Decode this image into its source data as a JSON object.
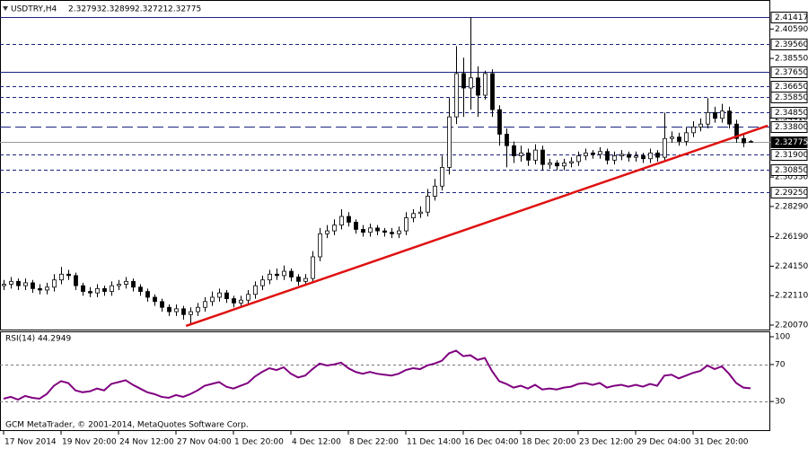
{
  "chart_data": [
    {
      "type": "candlestick",
      "title": "USDTRY,H4",
      "last_quote": [
        2.32793,
        2.32899,
        2.32721,
        2.32775
      ],
      "credit": "GCM MetaTrader, © 2001-2014, MetaQuotes Software Corp.",
      "categories": [
        "17 Nov 2014",
        null,
        null,
        null,
        null,
        null,
        null,
        null,
        "19 Nov 20:00",
        null,
        null,
        null,
        null,
        null,
        null,
        null,
        "24 Nov 12:00",
        null,
        null,
        null,
        null,
        null,
        null,
        null,
        "27 Nov 04:00",
        null,
        null,
        null,
        null,
        null,
        null,
        null,
        "1 Dec 20:00",
        null,
        null,
        null,
        null,
        null,
        null,
        null,
        "4 Dec 12:00",
        null,
        null,
        null,
        null,
        null,
        null,
        null,
        "8 Dec 22:00",
        null,
        null,
        null,
        null,
        null,
        null,
        null,
        "11 Dec 14:00",
        null,
        null,
        null,
        null,
        null,
        null,
        null,
        "16 Dec 04:00",
        null,
        null,
        null,
        null,
        null,
        null,
        null,
        "18 Dec 20:00",
        null,
        null,
        null,
        null,
        null,
        null,
        null,
        "23 Dec 12:00",
        null,
        null,
        null,
        null,
        null,
        null,
        null,
        "29 Dec 04:00",
        null,
        null,
        null,
        null,
        null,
        null,
        null,
        "31 Dec 20:00",
        null,
        null,
        null,
        null,
        null,
        null,
        null,
        null
      ],
      "open": [
        2.228,
        2.229,
        2.231,
        2.228,
        2.23,
        2.226,
        2.225,
        2.227,
        2.232,
        2.236,
        2.235,
        2.228,
        2.224,
        2.223,
        2.226,
        2.224,
        2.228,
        2.229,
        2.231,
        2.227,
        2.224,
        2.22,
        2.217,
        2.213,
        2.21,
        2.212,
        2.208,
        2.21,
        2.213,
        2.217,
        2.22,
        2.223,
        2.219,
        2.216,
        2.218,
        2.222,
        2.228,
        2.232,
        2.236,
        2.235,
        2.238,
        2.234,
        2.231,
        2.233,
        2.248,
        2.264,
        2.266,
        2.27,
        2.276,
        2.272,
        2.267,
        2.265,
        2.268,
        2.266,
        2.265,
        2.264,
        2.266,
        2.275,
        2.278,
        2.279,
        2.29,
        2.297,
        2.31,
        2.345,
        2.375,
        2.365,
        2.372,
        2.36,
        2.375,
        2.35,
        2.333,
        2.325,
        2.318,
        2.32,
        2.315,
        2.322,
        2.312,
        2.313,
        2.311,
        2.313,
        2.314,
        2.318,
        2.32,
        2.319,
        2.321,
        2.315,
        2.318,
        2.319,
        2.317,
        2.318,
        2.316,
        2.32,
        2.317,
        2.33,
        2.331,
        2.328,
        2.334,
        2.338,
        2.34,
        2.348,
        2.344,
        2.349,
        2.34,
        2.33,
        2.32793
      ],
      "high": [
        2.232,
        2.234,
        2.233,
        2.233,
        2.232,
        2.229,
        2.23,
        2.236,
        2.241,
        2.239,
        2.237,
        2.23,
        2.227,
        2.229,
        2.228,
        2.231,
        2.232,
        2.234,
        2.233,
        2.229,
        2.226,
        2.222,
        2.219,
        2.215,
        2.215,
        2.214,
        2.213,
        2.216,
        2.22,
        2.224,
        2.226,
        2.225,
        2.221,
        2.221,
        2.225,
        2.231,
        2.235,
        2.239,
        2.24,
        2.242,
        2.24,
        2.236,
        2.236,
        2.252,
        2.268,
        2.27,
        2.274,
        2.281,
        2.279,
        2.274,
        2.27,
        2.271,
        2.27,
        2.268,
        2.268,
        2.269,
        2.279,
        2.281,
        2.283,
        2.295,
        2.302,
        2.318,
        2.358,
        2.394,
        2.386,
        2.41417,
        2.38,
        2.377,
        2.378,
        2.353,
        2.337,
        2.328,
        2.325,
        2.323,
        2.326,
        2.325,
        2.316,
        2.315,
        2.316,
        2.317,
        2.321,
        2.323,
        2.322,
        2.324,
        2.323,
        2.321,
        2.322,
        2.321,
        2.321,
        2.32,
        2.323,
        2.322,
        2.348,
        2.335,
        2.334,
        2.338,
        2.342,
        2.344,
        2.358,
        2.352,
        2.354,
        2.352,
        2.343,
        2.333,
        2.32899
      ],
      "low": [
        2.225,
        2.226,
        2.225,
        2.225,
        2.223,
        2.222,
        2.222,
        2.224,
        2.229,
        2.232,
        2.225,
        2.221,
        2.22,
        2.22,
        2.221,
        2.221,
        2.225,
        2.226,
        2.224,
        2.221,
        2.217,
        2.214,
        2.21,
        2.207,
        2.207,
        2.2045,
        2.2007,
        2.207,
        2.21,
        2.214,
        2.217,
        2.216,
        2.213,
        2.213,
        2.215,
        2.219,
        2.225,
        2.229,
        2.232,
        2.232,
        2.231,
        2.228,
        2.228,
        2.23,
        2.245,
        2.261,
        2.263,
        2.267,
        2.269,
        2.264,
        2.262,
        2.262,
        2.263,
        2.262,
        2.261,
        2.261,
        2.263,
        2.272,
        2.275,
        2.276,
        2.287,
        2.294,
        2.305,
        2.34,
        2.345,
        2.35,
        2.345,
        2.357,
        2.345,
        2.325,
        2.31,
        2.313,
        2.314,
        2.311,
        2.312,
        2.308,
        2.309,
        2.308,
        2.308,
        2.31,
        2.311,
        2.315,
        2.316,
        2.316,
        2.312,
        2.312,
        2.315,
        2.314,
        2.314,
        2.313,
        2.313,
        2.314,
        2.314,
        2.327,
        2.325,
        2.325,
        2.331,
        2.335,
        2.337,
        2.341,
        2.341,
        2.337,
        2.327,
        2.324,
        2.32721
      ],
      "close": [
        2.229,
        2.231,
        2.228,
        2.23,
        2.226,
        2.225,
        2.227,
        2.232,
        2.236,
        2.235,
        2.228,
        2.224,
        2.223,
        2.226,
        2.224,
        2.228,
        2.229,
        2.231,
        2.227,
        2.224,
        2.22,
        2.217,
        2.213,
        2.21,
        2.212,
        2.208,
        2.21,
        2.213,
        2.217,
        2.22,
        2.223,
        2.219,
        2.216,
        2.218,
        2.222,
        2.228,
        2.232,
        2.236,
        2.235,
        2.238,
        2.234,
        2.231,
        2.233,
        2.248,
        2.264,
        2.266,
        2.27,
        2.276,
        2.272,
        2.267,
        2.265,
        2.268,
        2.266,
        2.265,
        2.264,
        2.266,
        2.275,
        2.278,
        2.279,
        2.29,
        2.297,
        2.31,
        2.345,
        2.375,
        2.365,
        2.372,
        2.36,
        2.375,
        2.35,
        2.333,
        2.325,
        2.318,
        2.32,
        2.315,
        2.322,
        2.312,
        2.313,
        2.311,
        2.313,
        2.314,
        2.318,
        2.32,
        2.319,
        2.321,
        2.315,
        2.318,
        2.319,
        2.317,
        2.318,
        2.316,
        2.32,
        2.317,
        2.33,
        2.331,
        2.328,
        2.334,
        2.338,
        2.34,
        2.348,
        2.344,
        2.349,
        2.34,
        2.33,
        2.327,
        2.32775
      ],
      "color": "#000000",
      "ylim": [
        2.19697,
        2.42599
      ],
      "yticks": [
        {
          "value": 2.4059,
          "label": "2.40590"
        },
        {
          "value": 2.3855,
          "label": "2.38550"
        },
        {
          "value": 2.3441,
          "label": "2.34410"
        },
        {
          "value": 2.3033,
          "label": "2.30330"
        },
        {
          "value": 2.2829,
          "label": "2.28290"
        },
        {
          "value": 2.2619,
          "label": "2.26190"
        },
        {
          "value": 2.2415,
          "label": "2.24150"
        },
        {
          "value": 2.2211,
          "label": "2.22110"
        },
        {
          "value": 2.2007,
          "label": "2.20070"
        }
      ],
      "levels": [
        {
          "value": 2.41417,
          "style": "solid"
        },
        {
          "value": 2.3956,
          "label": "2.39560",
          "style": "dashed"
        },
        {
          "value": 2.3765,
          "label": "2.37650",
          "style": "solid"
        },
        {
          "value": 2.3665,
          "label": "2.36650",
          "style": "dashed"
        },
        {
          "value": 2.3585,
          "label": "2.35850",
          "style": "dashed"
        },
        {
          "value": 2.3485,
          "label": "2.34850",
          "style": "dashed"
        },
        {
          "value": 2.338,
          "label": "2.33800",
          "style": "longdash"
        },
        {
          "value": 2.32775,
          "style": "current"
        },
        {
          "value": 2.319,
          "label": "2.31900",
          "style": "dashed"
        },
        {
          "value": 2.3085,
          "label": "2.30850",
          "style": "dashed"
        },
        {
          "value": 2.2925,
          "label": "2.29250",
          "style": "dashed"
        }
      ],
      "trendline": {
        "x": [
          25.4,
          106.4
        ],
        "y": [
          2.2001,
          2.3389
        ],
        "color": "#e01010"
      }
    },
    {
      "type": "line",
      "title": "RSI(14) 44.2949",
      "color": "#800080",
      "values": [
        33,
        35,
        32,
        36,
        34,
        33,
        38,
        47,
        52,
        50,
        42,
        40,
        41,
        44,
        42,
        49,
        51,
        53,
        48,
        44,
        40,
        38,
        35,
        34,
        37,
        35,
        38,
        42,
        47,
        49,
        51,
        46,
        44,
        47,
        50,
        57,
        62,
        66,
        64,
        67,
        60,
        56,
        58,
        65,
        71,
        69,
        70,
        72,
        66,
        62,
        60,
        62,
        60,
        59,
        58,
        60,
        64,
        66,
        65,
        69,
        71,
        74,
        82,
        85,
        79,
        80,
        75,
        77,
        63,
        52,
        49,
        45,
        47,
        44,
        48,
        43,
        44,
        43,
        45,
        46,
        49,
        50,
        48,
        50,
        45,
        47,
        48,
        46,
        48,
        46,
        49,
        47,
        58,
        59,
        55,
        58,
        61,
        63,
        69,
        65,
        68,
        60,
        50,
        45,
        44.2949
      ],
      "ylim": [
        0,
        100
      ],
      "yticks": [
        100,
        70,
        30
      ],
      "grid": [
        70,
        30
      ]
    }
  ]
}
